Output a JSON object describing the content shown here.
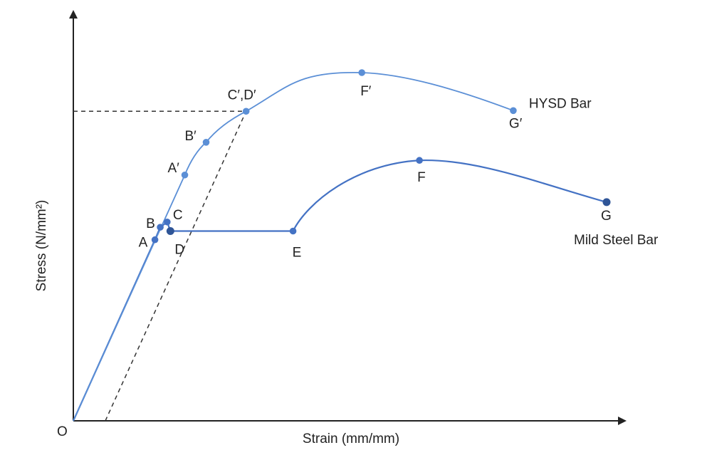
{
  "chart_data": {
    "type": "line",
    "xlabel": "Strain (mm/mm)",
    "ylabel": "Stress (N/mm²)",
    "origin_label": "O",
    "xlim": [
      0,
      100
    ],
    "ylim": [
      0,
      100
    ],
    "grid": false,
    "colors": {
      "mild": "#4472C4",
      "hysd": "#5B8FD6",
      "axis": "#222222",
      "dash": "#333333"
    },
    "series": [
      {
        "name": "Mild Steel Bar",
        "points": [
          {
            "label": "",
            "x": 0,
            "y": 0
          },
          {
            "label": "A",
            "x": 15.3,
            "y": 52.0
          },
          {
            "label": "B",
            "x": 16.3,
            "y": 55.6
          },
          {
            "label": "C",
            "x": 17.6,
            "y": 57.1
          },
          {
            "label": "D",
            "x": 18.2,
            "y": 54.5
          },
          {
            "label": "E",
            "x": 41.2,
            "y": 54.5
          },
          {
            "label": "F",
            "x": 64.9,
            "y": 74.8
          },
          {
            "label": "G",
            "x": 100,
            "y": 62.8
          }
        ]
      },
      {
        "name": "HYSD Bar",
        "points": [
          {
            "label": "",
            "x": 0,
            "y": 0
          },
          {
            "label": "A′",
            "x": 20.9,
            "y": 70.6
          },
          {
            "label": "B′",
            "x": 24.9,
            "y": 80.0
          },
          {
            "label": "C′,D′",
            "x": 32.4,
            "y": 88.9
          },
          {
            "label": "F′",
            "x": 54.1,
            "y": 100
          },
          {
            "label": "G′",
            "x": 82.5,
            "y": 89.1
          }
        ]
      }
    ],
    "offset_line": {
      "from": {
        "x": 6.0,
        "y": 0
      },
      "to": {
        "x": 32.4,
        "y": 88.9
      }
    },
    "proof_stress_line": {
      "from": {
        "x": 0,
        "y": 88.9
      },
      "to": {
        "x": 32.4,
        "y": 88.9
      }
    }
  }
}
